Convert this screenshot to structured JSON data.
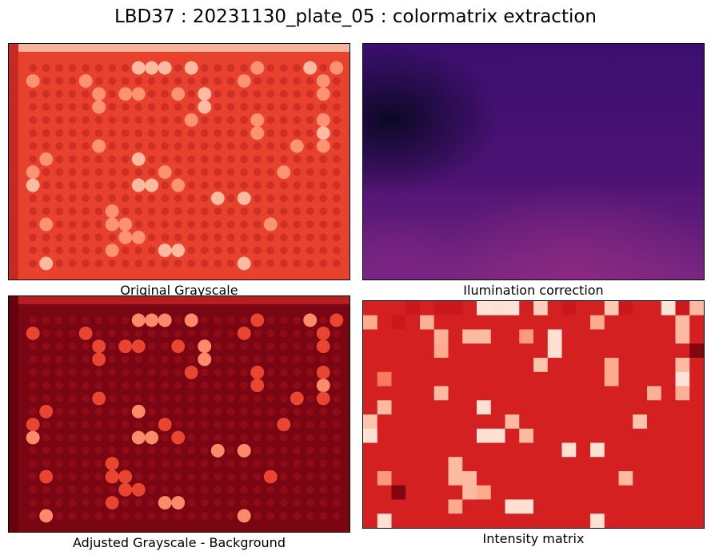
{
  "title": "LBD37 : 20231130_plate_05 : colormatrix extraction",
  "panels": {
    "original": {
      "caption": "Original Grayscale",
      "colormap": "Reds_r"
    },
    "illumination": {
      "caption": "Ilumination correction",
      "colormap": "magma"
    },
    "adjusted": {
      "caption": "Adjusted Grayscale - Background",
      "colormap": "Reds_r"
    },
    "matrix": {
      "caption": "Intensity matrix",
      "colormap": "Reds"
    }
  },
  "chart_data": {
    "type": "heatmap",
    "title": "Intensity matrix",
    "rows": 16,
    "cols": 24,
    "value_range": [
      0,
      1
    ],
    "colormap": "Reds",
    "values": [
      [
        0.72,
        0.72,
        0.72,
        0.75,
        0.72,
        0.75,
        0.75,
        0.72,
        0.1,
        0.12,
        0.1,
        0.72,
        0.18,
        0.72,
        0.75,
        0.72,
        0.72,
        0.2,
        0.75,
        0.72,
        0.72,
        0.1,
        0.75,
        0.25
      ],
      [
        0.3,
        0.72,
        0.75,
        0.72,
        0.28,
        0.72,
        0.72,
        0.72,
        0.72,
        0.72,
        0.72,
        0.72,
        0.72,
        0.72,
        0.72,
        0.72,
        0.3,
        0.72,
        0.72,
        0.72,
        0.72,
        0.72,
        0.25,
        0.72
      ],
      [
        0.72,
        0.72,
        0.72,
        0.72,
        0.72,
        0.28,
        0.72,
        0.25,
        0.25,
        0.72,
        0.72,
        0.35,
        0.72,
        0.12,
        0.72,
        0.72,
        0.72,
        0.72,
        0.72,
        0.72,
        0.72,
        0.72,
        0.25,
        0.72
      ],
      [
        0.72,
        0.72,
        0.72,
        0.72,
        0.72,
        0.3,
        0.72,
        0.72,
        0.72,
        0.72,
        0.72,
        0.72,
        0.72,
        0.12,
        0.72,
        0.72,
        0.72,
        0.72,
        0.72,
        0.72,
        0.72,
        0.72,
        0.72,
        0.95
      ],
      [
        0.72,
        0.72,
        0.72,
        0.72,
        0.72,
        0.72,
        0.72,
        0.72,
        0.72,
        0.72,
        0.72,
        0.72,
        0.22,
        0.72,
        0.72,
        0.72,
        0.72,
        0.3,
        0.72,
        0.72,
        0.72,
        0.72,
        0.25,
        0.72
      ],
      [
        0.72,
        0.45,
        0.72,
        0.72,
        0.72,
        0.72,
        0.72,
        0.72,
        0.72,
        0.72,
        0.72,
        0.72,
        0.72,
        0.72,
        0.72,
        0.72,
        0.72,
        0.3,
        0.72,
        0.72,
        0.72,
        0.72,
        0.1,
        0.72
      ],
      [
        0.72,
        0.72,
        0.72,
        0.72,
        0.72,
        0.25,
        0.72,
        0.72,
        0.72,
        0.72,
        0.72,
        0.72,
        0.72,
        0.72,
        0.72,
        0.72,
        0.72,
        0.72,
        0.72,
        0.72,
        0.28,
        0.72,
        0.28,
        0.72
      ],
      [
        0.72,
        0.25,
        0.72,
        0.72,
        0.72,
        0.72,
        0.72,
        0.72,
        0.12,
        0.72,
        0.72,
        0.72,
        0.72,
        0.72,
        0.72,
        0.72,
        0.72,
        0.72,
        0.72,
        0.72,
        0.72,
        0.72,
        0.72,
        0.72
      ],
      [
        0.22,
        0.72,
        0.72,
        0.72,
        0.72,
        0.72,
        0.72,
        0.72,
        0.72,
        0.72,
        0.25,
        0.72,
        0.72,
        0.72,
        0.72,
        0.72,
        0.72,
        0.72,
        0.72,
        0.22,
        0.72,
        0.72,
        0.72,
        0.72
      ],
      [
        0.12,
        0.72,
        0.72,
        0.72,
        0.72,
        0.72,
        0.72,
        0.72,
        0.12,
        0.12,
        0.72,
        0.25,
        0.72,
        0.72,
        0.72,
        0.72,
        0.72,
        0.72,
        0.72,
        0.72,
        0.72,
        0.72,
        0.72,
        0.72
      ],
      [
        0.72,
        0.72,
        0.72,
        0.72,
        0.72,
        0.72,
        0.72,
        0.72,
        0.72,
        0.72,
        0.72,
        0.72,
        0.72,
        0.72,
        0.12,
        0.72,
        0.12,
        0.72,
        0.72,
        0.72,
        0.72,
        0.72,
        0.72,
        0.72
      ],
      [
        0.72,
        0.72,
        0.72,
        0.72,
        0.72,
        0.72,
        0.25,
        0.72,
        0.72,
        0.72,
        0.72,
        0.72,
        0.72,
        0.72,
        0.72,
        0.72,
        0.72,
        0.72,
        0.72,
        0.72,
        0.72,
        0.72,
        0.72,
        0.72
      ],
      [
        0.72,
        0.35,
        0.72,
        0.72,
        0.72,
        0.72,
        0.25,
        0.25,
        0.72,
        0.72,
        0.72,
        0.72,
        0.72,
        0.72,
        0.72,
        0.72,
        0.72,
        0.72,
        0.25,
        0.72,
        0.72,
        0.72,
        0.72,
        0.72
      ],
      [
        0.72,
        0.72,
        0.95,
        0.72,
        0.72,
        0.72,
        0.72,
        0.25,
        0.3,
        0.72,
        0.72,
        0.72,
        0.72,
        0.72,
        0.72,
        0.72,
        0.72,
        0.72,
        0.72,
        0.72,
        0.72,
        0.72,
        0.72,
        0.72
      ],
      [
        0.72,
        0.72,
        0.72,
        0.72,
        0.72,
        0.72,
        0.3,
        0.72,
        0.72,
        0.72,
        0.12,
        0.12,
        0.72,
        0.72,
        0.72,
        0.72,
        0.72,
        0.72,
        0.72,
        0.72,
        0.72,
        0.72,
        0.72,
        0.72
      ],
      [
        0.72,
        0.12,
        0.72,
        0.72,
        0.72,
        0.72,
        0.72,
        0.72,
        0.72,
        0.72,
        0.72,
        0.72,
        0.72,
        0.72,
        0.72,
        0.72,
        0.12,
        0.72,
        0.72,
        0.72,
        0.72,
        0.72,
        0.72,
        0.72
      ]
    ]
  }
}
